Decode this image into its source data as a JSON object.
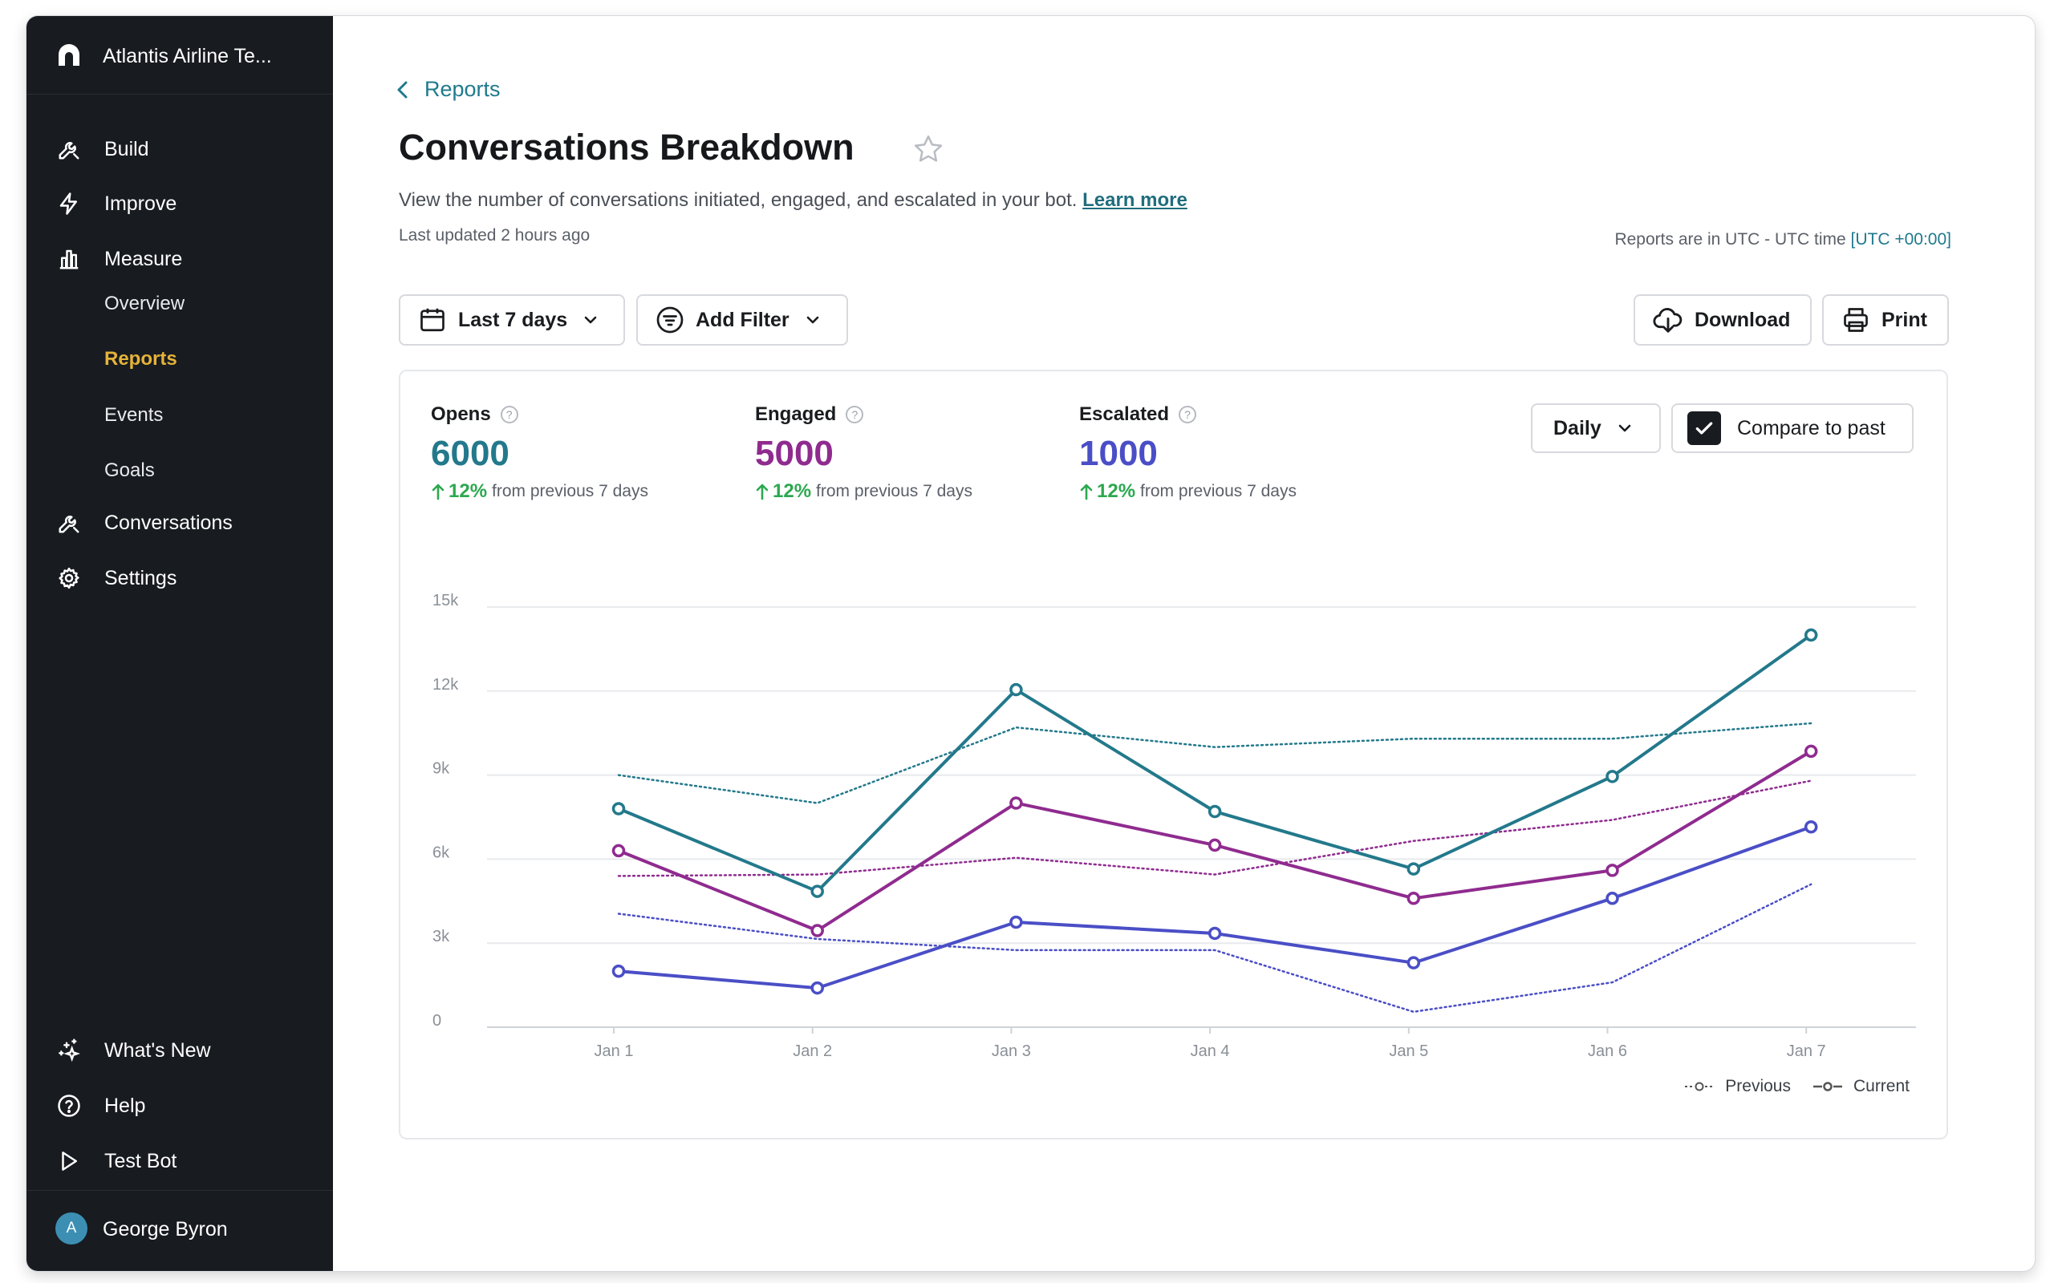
{
  "app": {
    "org_name": "Atlantis Airline Te...",
    "user": {
      "initial": "A",
      "name": "George Byron"
    }
  },
  "sidebar": {
    "nav": [
      {
        "label": "Build",
        "icon": "wrench-icon"
      },
      {
        "label": "Improve",
        "icon": "lightning-icon"
      },
      {
        "label": "Measure",
        "icon": "bar-chart-icon"
      }
    ],
    "measure_sub": [
      {
        "label": "Overview",
        "active": false
      },
      {
        "label": "Reports",
        "active": true
      },
      {
        "label": "Events",
        "active": false
      },
      {
        "label": "Goals",
        "active": false
      }
    ],
    "nav2": [
      {
        "label": "Conversations",
        "icon": "wrench-icon"
      },
      {
        "label": "Settings",
        "icon": "gear-icon"
      }
    ],
    "bottom": [
      {
        "label": "What's New",
        "icon": "sparkle-icon"
      },
      {
        "label": "Help",
        "icon": "help-circle-icon"
      },
      {
        "label": "Test Bot",
        "icon": "play-icon"
      }
    ]
  },
  "header": {
    "breadcrumb": "Reports",
    "title": "Conversations Breakdown",
    "description": "View the number of conversations initiated, engaged, and escalated in your bot.",
    "learn_more": "Learn more",
    "last_updated": "Last updated 2 hours ago",
    "timezone_text": "Reports are in UTC - UTC time",
    "timezone_link": "[UTC +00:00]"
  },
  "toolbar": {
    "date_range": "Last 7 days",
    "add_filter": "Add Filter",
    "download": "Download",
    "print": "Print"
  },
  "metrics": [
    {
      "label": "Opens",
      "value": "6000",
      "change": "12%",
      "change_text": "from previous 7 days",
      "color": "#23798b"
    },
    {
      "label": "Engaged",
      "value": "5000",
      "change": "12%",
      "change_text": "from previous 7 days",
      "color": "#8f2b8f"
    },
    {
      "label": "Escalated",
      "value": "1000",
      "change": "12%",
      "change_text": "from previous 7 days",
      "color": "#4a4ec6"
    }
  ],
  "controls": {
    "interval": "Daily",
    "compare_label": "Compare to past",
    "compare_checked": true
  },
  "legend": {
    "previous": "Previous",
    "current": "Current"
  },
  "chart_data": {
    "type": "line",
    "x": [
      "Jan 1",
      "Jan 2",
      "Jan 3",
      "Jan 4",
      "Jan 5",
      "Jan 6",
      "Jan 7"
    ],
    "y_ticks": [
      "0",
      "3k",
      "6k",
      "9k",
      "12k",
      "15k"
    ],
    "ylim": [
      0,
      15000
    ],
    "grid": true,
    "legend_position": "bottom-right",
    "series": [
      {
        "name": "Opens",
        "period": "current",
        "color": "#23798b",
        "values": [
          7800,
          4850,
          12050,
          7700,
          5650,
          8950,
          14000
        ]
      },
      {
        "name": "Engaged",
        "period": "current",
        "color": "#8f2b8f",
        "values": [
          6300,
          3450,
          8000,
          6500,
          4600,
          5600,
          9850
        ]
      },
      {
        "name": "Escalated",
        "period": "current",
        "color": "#4a4ec6",
        "values": [
          2000,
          1400,
          3750,
          3350,
          2300,
          4600,
          7150
        ]
      },
      {
        "name": "Opens",
        "period": "previous",
        "color": "#23798b",
        "values": [
          9000,
          8000,
          10700,
          10000,
          10300,
          10300,
          10850
        ]
      },
      {
        "name": "Engaged",
        "period": "previous",
        "color": "#8f2b8f",
        "values": [
          5400,
          5450,
          6050,
          5450,
          6650,
          7400,
          8800
        ]
      },
      {
        "name": "Escalated",
        "period": "previous",
        "color": "#4a4ec6",
        "values": [
          4050,
          3150,
          2750,
          2750,
          550,
          1600,
          5100
        ]
      }
    ]
  }
}
